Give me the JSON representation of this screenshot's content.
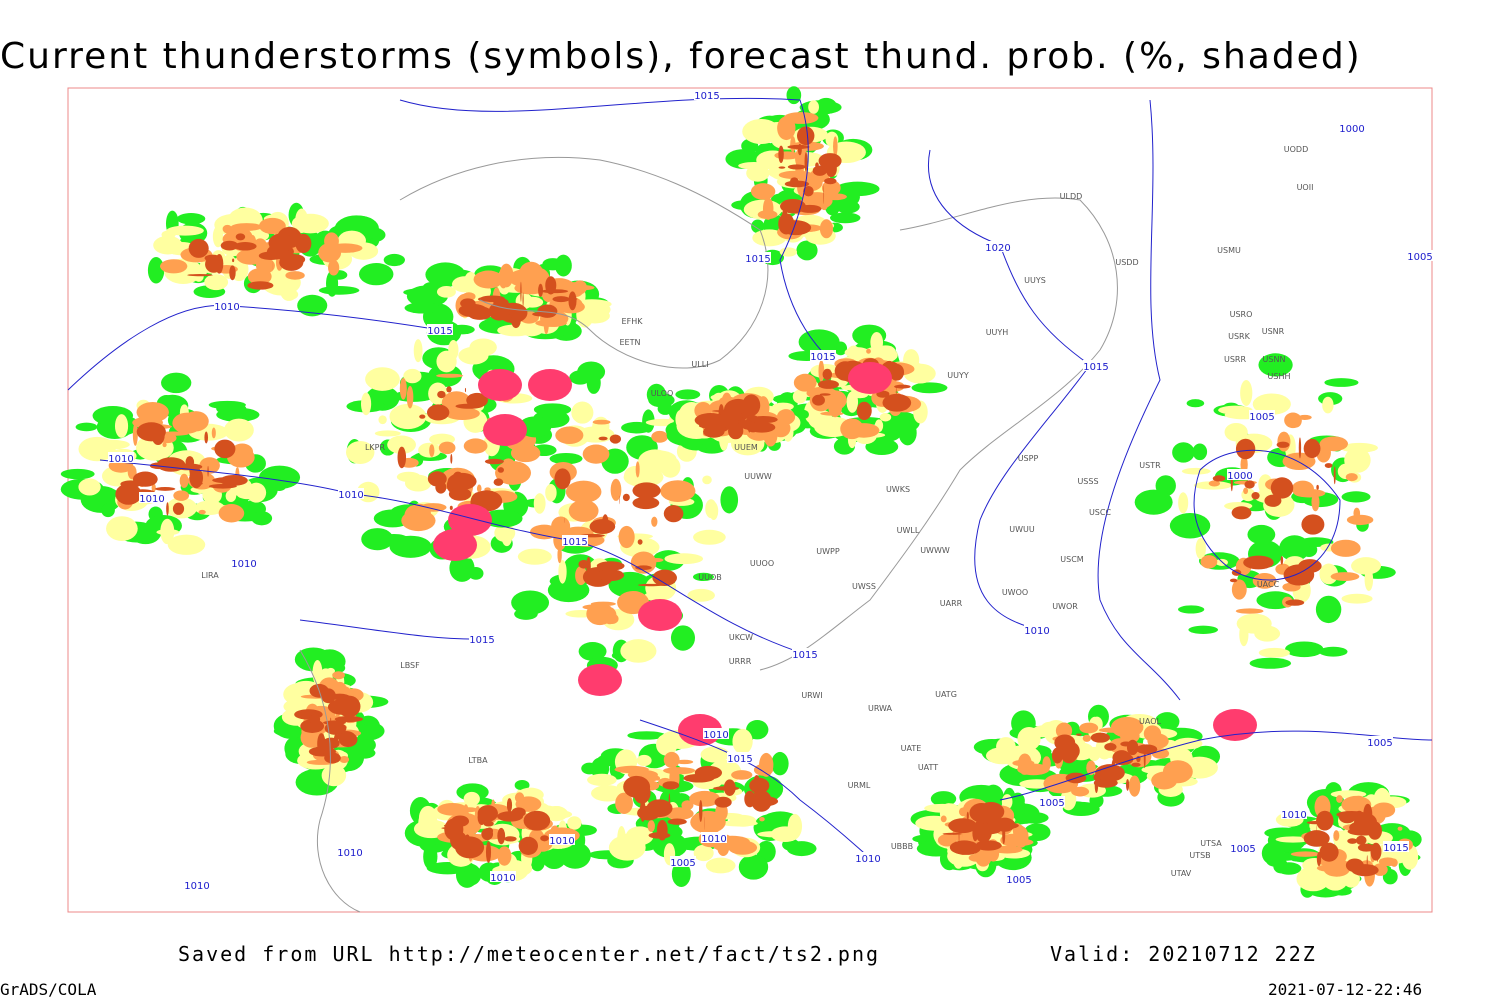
{
  "header": {
    "title": "Current thunderstorms (symbols), forecast thund. prob. (%, shaded)"
  },
  "isobar_labels": [
    "1015",
    "1000",
    "1020",
    "1015",
    "1005",
    "1010",
    "1015",
    "1015",
    "1015",
    "1005",
    "1010",
    "1000",
    "1010",
    "1010",
    "1015",
    "1010",
    "1015",
    "1010",
    "1015",
    "1010",
    "1015",
    "1005",
    "1005",
    "1010",
    "1010",
    "1010",
    "1010",
    "1015",
    "1005",
    "1005",
    "1010",
    "1010",
    "1005",
    "1010"
  ],
  "stations": [
    "ULDD",
    "USDD",
    "USMU",
    "UUYS",
    "UUYH",
    "UUYY",
    "ULLI",
    "ULOO",
    "UUEM",
    "UUWW",
    "UWKS",
    "USPP",
    "USSS",
    "USCC",
    "UWUU",
    "UWLL",
    "UWWW",
    "UWPP",
    "UUOO",
    "UUOB",
    "USCM",
    "UWSS",
    "UARR",
    "UWOO",
    "UWOR",
    "UKCW",
    "URRR",
    "URWI",
    "UATG",
    "URWA",
    "UATE",
    "UATT",
    "URML",
    "UBBB",
    "UTSB",
    "UTAV",
    "UTSA",
    "LIRA",
    "LKPR",
    "LBSF",
    "LTBA",
    "EFHK",
    "EETN",
    "USTR",
    "USRK",
    "USRR",
    "USNN",
    "USNR",
    "USRO",
    "UODD",
    "UOII",
    "USHH",
    "UAOL",
    "UACC"
  ],
  "footer": {
    "saved": "Saved from URL http://meteocenter.net/fact/ts2.png",
    "valid": "Valid: 20210712 22Z",
    "software": "GrADS/COLA",
    "timestamp": "2021-07-12-22:46"
  }
}
